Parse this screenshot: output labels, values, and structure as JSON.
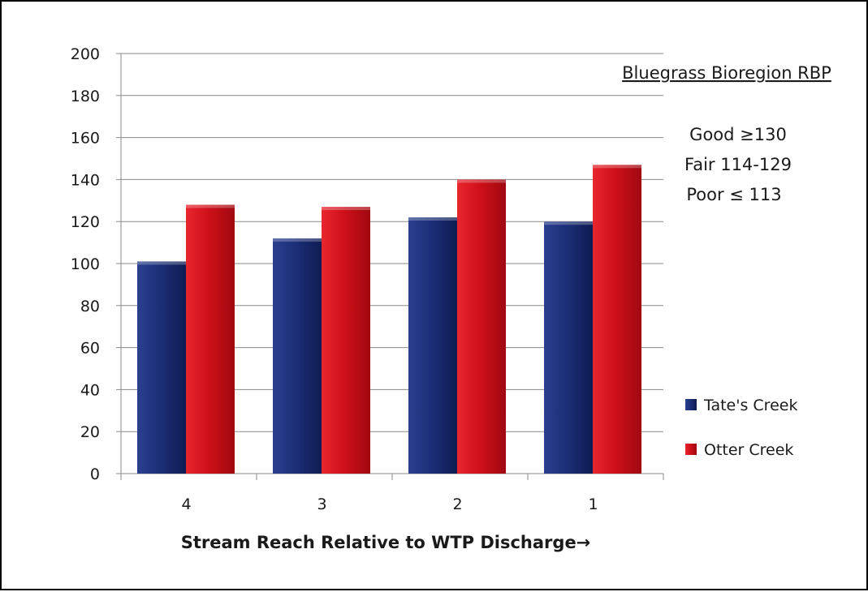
{
  "chart_data": {
    "type": "bar",
    "categories": [
      "4",
      "3",
      "2",
      "1"
    ],
    "series": [
      {
        "name": "Tate's Creek",
        "values": [
          101,
          112,
          122,
          120
        ],
        "color": "#1c2f78"
      },
      {
        "name": "Otter Creek",
        "values": [
          128,
          127,
          140,
          147
        ],
        "color": "#d0101a"
      }
    ],
    "title": "",
    "xlabel": "Stream Reach Relative to WTP Discharge→",
    "ylabel": "",
    "ylim": [
      0,
      200
    ],
    "yticks": [
      0,
      20,
      40,
      60,
      80,
      100,
      120,
      140,
      160,
      180,
      200
    ],
    "grid": true,
    "legend_position": "right",
    "annotations": {
      "region_title": "Bluegrass Bioregion RBP",
      "thresholds": [
        "Good ≥130",
        "Fair 114-129",
        "Poor ≤ 113"
      ]
    }
  }
}
